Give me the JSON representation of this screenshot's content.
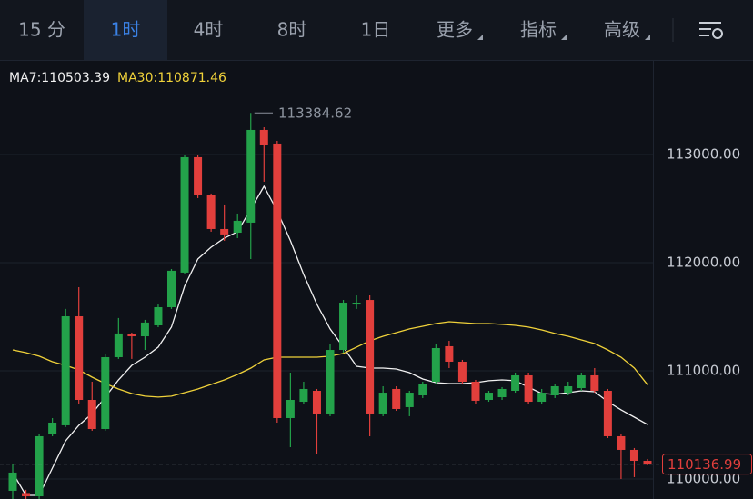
{
  "tabs": [
    "15 分",
    "1时",
    "4时",
    "8时",
    "1日",
    "更多",
    "指标",
    "高级"
  ],
  "chart_data": {
    "type": "candlestick",
    "up_color": "#23a24a",
    "down_color": "#e23f3c",
    "open": [
      109891,
      109870,
      109840,
      110412,
      110496,
      111504,
      110731,
      110462,
      111126,
      111336,
      111319,
      111420,
      111588,
      111908,
      112975,
      112622,
      112311,
      112277,
      112370,
      113227,
      113101,
      110563,
      110714,
      110815,
      110605,
      111193,
      111613,
      111655,
      110605,
      110832,
      110664,
      110773,
      110899,
      111227,
      111084,
      110899,
      110731,
      110756,
      110815,
      110958,
      110714,
      110773,
      110798,
      110840,
      110958,
      110815,
      110395,
      110269,
      110168
    ],
    "high": [
      110143,
      109900,
      110412,
      110563,
      111572,
      111773,
      110899,
      111151,
      111488,
      111353,
      111471,
      111613,
      111941,
      113000,
      113000,
      112639,
      112538,
      112454,
      113384.62,
      113252,
      113126,
      110983,
      110899,
      110832,
      111252,
      111655,
      111697,
      111697,
      110857,
      110857,
      110815,
      110899,
      111252,
      111277,
      111101,
      110916,
      110815,
      110849,
      110983,
      110983,
      110832,
      110882,
      110899,
      110983,
      111025,
      110832,
      110412,
      110286,
      110185
    ],
    "low": [
      109815,
      109815,
      109815,
      110395,
      110480,
      110689,
      110446,
      110446,
      111110,
      111110,
      111193,
      111403,
      111572,
      111891,
      112597,
      112286,
      112202,
      112227,
      112034,
      112748,
      110521,
      110294,
      110689,
      110227,
      110580,
      111168,
      111572,
      110395,
      110580,
      110630,
      110580,
      110748,
      110882,
      111025,
      110882,
      110689,
      110714,
      110731,
      110798,
      110689,
      110689,
      110748,
      110773,
      110815,
      110798,
      110378,
      110000,
      110017,
      110126
    ],
    "close": [
      110059,
      109840,
      110395,
      110521,
      111504,
      110731,
      110462,
      111126,
      111345,
      111319,
      111446,
      111588,
      111925,
      112975,
      112622,
      112311,
      112261,
      112387,
      113227,
      113084,
      110563,
      110731,
      110832,
      110605,
      111193,
      111630,
      111630,
      110605,
      110798,
      110647,
      110798,
      110882,
      111210,
      111084,
      110899,
      110723,
      110798,
      110832,
      110958,
      110714,
      110798,
      110857,
      110857,
      110958,
      110815,
      110395,
      110269,
      110168,
      110136.99
    ],
    "lines": [
      {
        "name": "MA7:110503.39",
        "color": "#f2f2f2",
        "values": [
          110059,
          109849,
          109849,
          110101,
          110353,
          110496,
          110605,
          110757,
          110916,
          111050,
          111126,
          111219,
          111404,
          111782,
          112034,
          112143,
          112227,
          112286,
          112496,
          112706,
          112479,
          112202,
          111891,
          111614,
          111387,
          111219,
          111042,
          111025,
          111025,
          111017,
          110983,
          110924,
          110891,
          110882,
          110882,
          110891,
          110908,
          110916,
          110908,
          110849,
          110790,
          110782,
          110798,
          110815,
          110807,
          110714,
          110639,
          110571,
          110503.39
        ]
      },
      {
        "name": "MA30:110871.46",
        "color": "#f0d23a",
        "values": [
          111193,
          111168,
          111135,
          111084,
          111050,
          111008,
          110941,
          110882,
          110832,
          110790,
          110765,
          110757,
          110765,
          110798,
          110832,
          110874,
          110916,
          110966,
          111025,
          111101,
          111126,
          111126,
          111126,
          111126,
          111135,
          111160,
          111219,
          111277,
          111319,
          111353,
          111387,
          111412,
          111437,
          111454,
          111445,
          111437,
          111437,
          111429,
          111420,
          111404,
          111378,
          111345,
          111319,
          111286,
          111252,
          111193,
          111126,
          111025,
          110871.46
        ]
      }
    ],
    "ylim": [
      109815,
      113857
    ],
    "yticks": [
      {
        "value": 110000,
        "label": "110000.00"
      },
      {
        "value": 111000,
        "label": "111000.00"
      },
      {
        "value": 112000,
        "label": "112000.00"
      },
      {
        "value": 113000,
        "label": "113000.00"
      }
    ],
    "grid": true
  }
}
